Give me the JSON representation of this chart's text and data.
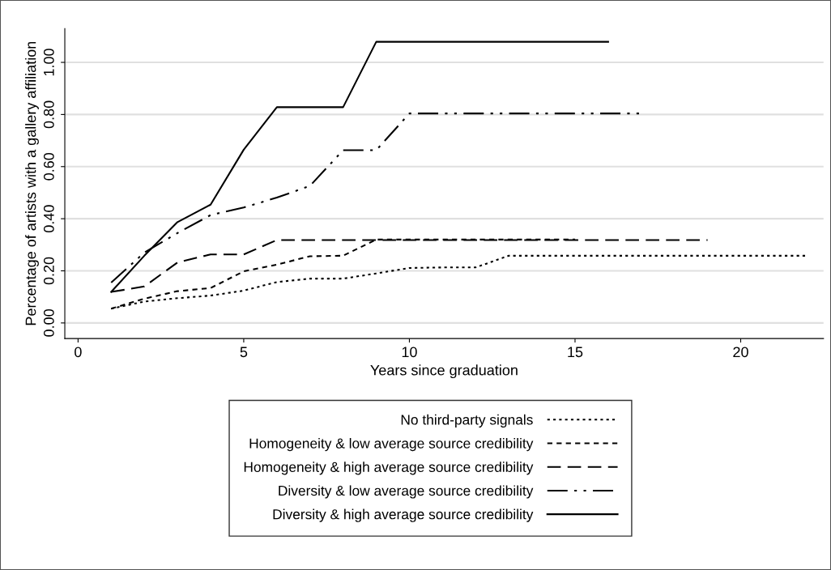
{
  "chart_data": {
    "type": "line",
    "xlabel": "Years since graduation",
    "ylabel": "Percentage of artists with a gallery affiliation",
    "xlim": [
      -0.4,
      22.5
    ],
    "xticks": [
      0,
      5,
      10,
      15,
      20
    ],
    "ylim": [
      -0.06,
      1.13
    ],
    "yticks": [
      {
        "value": 0,
        "label": "0.00"
      },
      {
        "value": 0.2,
        "label": "0.20"
      },
      {
        "value": 0.4,
        "label": "0.40"
      },
      {
        "value": 0.6,
        "label": "0.60"
      },
      {
        "value": 0.8,
        "label": "0.80"
      },
      {
        "value": 1.0,
        "label": "1.00"
      }
    ],
    "grid": "y",
    "legend": "bottom",
    "marker": "none",
    "series": [
      {
        "name": "No third-party signals",
        "color": "#000000",
        "line_style": "dotted",
        "x": [
          1,
          2,
          3,
          4,
          5,
          6,
          7,
          8,
          9,
          10,
          11,
          12,
          13,
          14,
          15,
          16,
          17,
          18,
          19,
          20,
          21,
          22
        ],
        "values": [
          0.055,
          0.082,
          0.095,
          0.105,
          0.124,
          0.157,
          0.17,
          0.17,
          0.19,
          0.211,
          0.213,
          0.213,
          0.258,
          0.258,
          0.258,
          0.258,
          0.258,
          0.258,
          0.258,
          0.258,
          0.258,
          0.258
        ]
      },
      {
        "name": "Homogeneity & low average source credibility",
        "color": "#000000",
        "line_style": "dashed",
        "x": [
          1,
          2,
          3,
          4,
          5,
          6,
          7,
          8,
          9,
          10,
          11,
          12,
          13,
          14,
          15
        ],
        "values": [
          0.055,
          0.093,
          0.122,
          0.134,
          0.198,
          0.224,
          0.256,
          0.258,
          0.32,
          0.32,
          0.32,
          0.32,
          0.32,
          0.32,
          0.32
        ]
      },
      {
        "name": "Homogeneity & high average source credibility",
        "color": "#000000",
        "line_style": "longdash",
        "x": [
          1,
          2,
          3,
          4,
          5,
          6,
          7,
          8,
          9,
          10,
          11,
          12,
          13,
          14,
          15,
          16,
          17,
          18,
          19
        ],
        "values": [
          0.119,
          0.14,
          0.232,
          0.263,
          0.263,
          0.318,
          0.318,
          0.318,
          0.318,
          0.318,
          0.318,
          0.318,
          0.318,
          0.318,
          0.318,
          0.318,
          0.318,
          0.318,
          0.318
        ]
      },
      {
        "name": "Diversity & low average source credibility",
        "color": "#000000",
        "line_style": "dashdot",
        "x": [
          1,
          2,
          3,
          4,
          5,
          6,
          7,
          8,
          9,
          10,
          11,
          12,
          13,
          14,
          15,
          16,
          17
        ],
        "values": [
          0.155,
          0.27,
          0.345,
          0.414,
          0.443,
          0.481,
          0.526,
          0.663,
          0.663,
          0.804,
          0.804,
          0.804,
          0.804,
          0.804,
          0.804,
          0.804,
          0.804
        ]
      },
      {
        "name": "Diversity & high average source credibility",
        "color": "#000000",
        "line_style": "solid",
        "x": [
          1,
          2,
          3,
          4,
          5,
          6,
          7,
          8,
          9,
          10,
          11,
          12,
          13,
          14,
          15,
          16
        ],
        "values": [
          0.119,
          0.258,
          0.387,
          0.454,
          0.665,
          0.828,
          0.828,
          0.828,
          1.079,
          1.079,
          1.079,
          1.079,
          1.079,
          1.079,
          1.079,
          1.079
        ]
      }
    ]
  }
}
